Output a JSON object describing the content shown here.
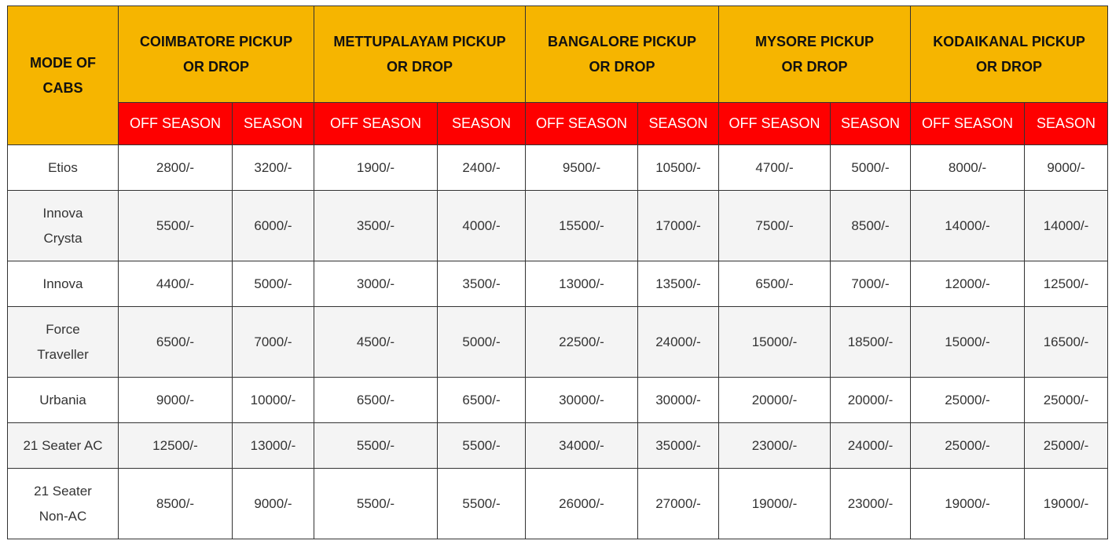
{
  "colors": {
    "header_bg": "#f6b500",
    "subheader_bg": "#fe0000",
    "subheader_text": "#ffffff",
    "alt_row_bg": "#f4f4f4"
  },
  "table": {
    "mode_header": [
      "MODE OF",
      "CABS"
    ],
    "routes": [
      {
        "line1": "COIMBATORE PICKUP",
        "line2": "OR DROP"
      },
      {
        "line1": "METTUPALAYAM PICKUP",
        "line2": "OR DROP"
      },
      {
        "line1": "BANGALORE PICKUP",
        "line2": "OR DROP"
      },
      {
        "line1": "MYSORE PICKUP",
        "line2": "OR DROP"
      },
      {
        "line1": "KODAIKANAL PICKUP",
        "line2": "OR DROP"
      }
    ],
    "subheaders": [
      "OFF SEASON",
      "SEASON"
    ],
    "rows": [
      {
        "name": [
          "Etios"
        ],
        "prices": [
          "2800/-",
          "3200/-",
          "1900/-",
          "2400/-",
          "9500/-",
          "10500/-",
          "4700/-",
          "5000/-",
          "8000/-",
          "9000/-"
        ]
      },
      {
        "name": [
          "Innova",
          "Crysta"
        ],
        "prices": [
          "5500/-",
          "6000/-",
          "3500/-",
          "4000/-",
          "15500/-",
          "17000/-",
          "7500/-",
          "8500/-",
          "14000/-",
          "14000/-"
        ]
      },
      {
        "name": [
          "Innova"
        ],
        "prices": [
          "4400/-",
          "5000/-",
          "3000/-",
          "3500/-",
          "13000/-",
          "13500/-",
          "6500/-",
          "7000/-",
          "12000/-",
          "12500/-"
        ]
      },
      {
        "name": [
          "Force",
          "Traveller"
        ],
        "prices": [
          "6500/-",
          "7000/-",
          "4500/-",
          "5000/-",
          "22500/-",
          "24000/-",
          "15000/-",
          "18500/-",
          "15000/-",
          "16500/-"
        ]
      },
      {
        "name": [
          "Urbania"
        ],
        "prices": [
          "9000/-",
          "10000/-",
          "6500/-",
          "6500/-",
          "30000/-",
          "30000/-",
          "20000/-",
          "20000/-",
          "25000/-",
          "25000/-"
        ]
      },
      {
        "name": [
          "21 Seater AC"
        ],
        "prices": [
          "12500/-",
          "13000/-",
          "5500/-",
          "5500/-",
          "34000/-",
          "35000/-",
          "23000/-",
          "24000/-",
          "25000/-",
          "25000/-"
        ]
      },
      {
        "name": [
          "21 Seater",
          "Non-AC"
        ],
        "prices": [
          "8500/-",
          "9000/-",
          "5500/-",
          "5500/-",
          "26000/-",
          "27000/-",
          "19000/-",
          "23000/-",
          "19000/-",
          "19000/-"
        ]
      }
    ]
  }
}
